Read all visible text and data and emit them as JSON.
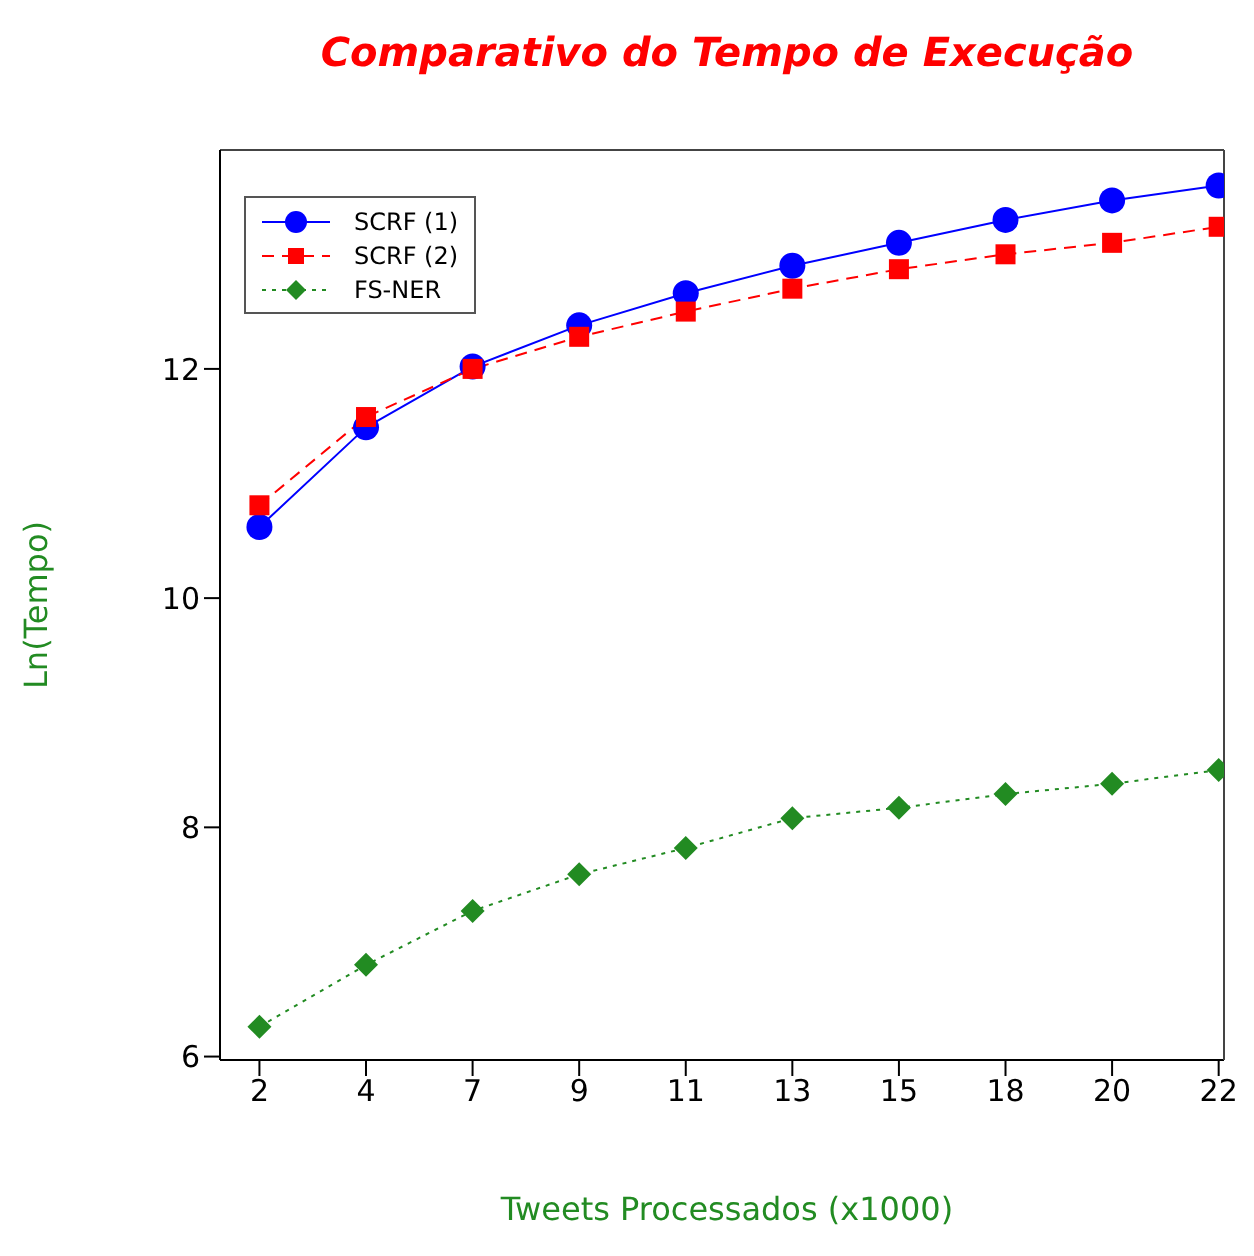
{
  "chart_data": {
    "type": "line",
    "title": "Comparativo do Tempo de Execução",
    "xlabel": "Tweets Processados (x1000)",
    "ylabel": "Ln(Tempo)",
    "categories": [
      "2",
      "4",
      "7",
      "9",
      "11",
      "13",
      "15",
      "18",
      "20",
      "22"
    ],
    "series": [
      {
        "name": "SCRF (1)",
        "color": "#0000ff",
        "marker": "circle",
        "line_style": "solid",
        "values": [
          10.62,
          11.49,
          12.02,
          12.38,
          12.66,
          12.9,
          13.1,
          13.3,
          13.47,
          13.6
        ]
      },
      {
        "name": "SCRF (2)",
        "color": "#ff0000",
        "marker": "square",
        "line_style": "dashed",
        "values": [
          10.81,
          11.58,
          12.0,
          12.28,
          12.5,
          12.7,
          12.87,
          13.0,
          13.1,
          13.24
        ]
      },
      {
        "name": "FS-NER",
        "color": "#228b22",
        "marker": "diamond",
        "line_style": "dotted",
        "values": [
          6.26,
          6.8,
          7.27,
          7.59,
          7.82,
          8.08,
          8.17,
          8.29,
          8.38,
          8.5
        ]
      }
    ],
    "ylim": [
      5.97,
      13.91
    ],
    "yticks": [
      6,
      8,
      10,
      12
    ],
    "grid": false,
    "legend": "top left"
  }
}
